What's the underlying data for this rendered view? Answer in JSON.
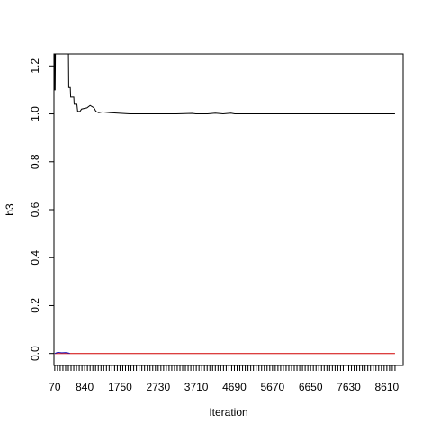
{
  "chart_data": {
    "type": "line",
    "xlabel": "Iteration",
    "ylabel": "b3",
    "xlim": [
      50,
      9030
    ],
    "ylim": [
      -0.05,
      1.25
    ],
    "x_ticks": [
      70,
      840,
      1750,
      2730,
      3710,
      4690,
      5670,
      6650,
      7630,
      8610
    ],
    "y_ticks": [
      0.0,
      0.2,
      0.4,
      0.6,
      0.8,
      1.0,
      1.2
    ],
    "y_tick_labels": [
      "0.0",
      "0.2",
      "0.4",
      "0.6",
      "0.8",
      "1.0",
      "1.2"
    ],
    "minor_tick_step": 70,
    "minor_tick_start": 70,
    "minor_tick_end": 8820,
    "grid": false,
    "series": [
      {
        "color": "#000000",
        "points": [
          [
            70,
            1.3
          ],
          [
            70,
            1.1
          ],
          [
            80,
            1.1
          ],
          [
            90,
            1.3
          ],
          [
            420,
            1.3
          ],
          [
            430,
            1.11
          ],
          [
            470,
            1.11
          ],
          [
            480,
            1.07
          ],
          [
            560,
            1.07
          ],
          [
            570,
            1.04
          ],
          [
            640,
            1.04
          ],
          [
            660,
            1.01
          ],
          [
            720,
            1.01
          ],
          [
            760,
            1.02
          ],
          [
            900,
            1.025
          ],
          [
            980,
            1.035
          ],
          [
            1080,
            1.025
          ],
          [
            1130,
            1.01
          ],
          [
            1200,
            1.005
          ],
          [
            1300,
            1.008
          ],
          [
            1500,
            1.005
          ],
          [
            1700,
            1.003
          ],
          [
            2000,
            1.0
          ],
          [
            2700,
            1.0
          ],
          [
            3200,
            1.0
          ],
          [
            3600,
            1.002
          ],
          [
            3700,
            1.0
          ],
          [
            4000,
            1.0
          ],
          [
            4200,
            1.003
          ],
          [
            4400,
            1.0
          ],
          [
            4600,
            1.003
          ],
          [
            4700,
            1.0
          ],
          [
            5500,
            1.0
          ],
          [
            7000,
            1.0
          ],
          [
            8820,
            1.0
          ]
        ]
      },
      {
        "color": "#d00000",
        "points": [
          [
            70,
            0.0
          ],
          [
            8820,
            0.0
          ]
        ]
      },
      {
        "color": "#2020c0",
        "points": [
          [
            70,
            0.0
          ],
          [
            150,
            0.005
          ],
          [
            250,
            0.003
          ],
          [
            350,
            0.004
          ],
          [
            420,
            0.002
          ],
          [
            460,
            0.0
          ]
        ]
      }
    ]
  }
}
